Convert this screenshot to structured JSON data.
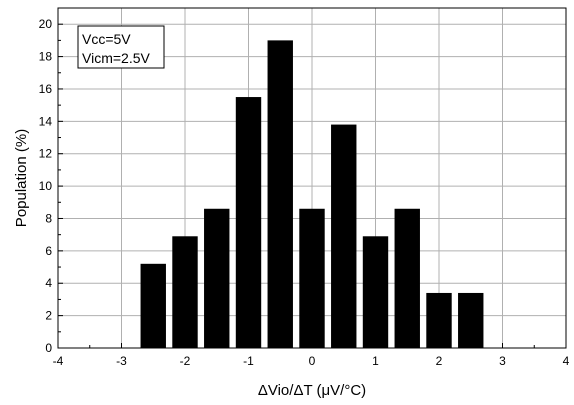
{
  "chart_data": {
    "type": "bar",
    "xlabel": "ΔVio/ΔT (μV/°C)",
    "ylabel": "Population (%)",
    "xlim": [
      -4,
      4
    ],
    "ylim": [
      0,
      21
    ],
    "xticks": [
      -4,
      -3,
      -2,
      -1,
      0,
      1,
      2,
      3,
      4
    ],
    "yticks": [
      0,
      2,
      4,
      6,
      8,
      10,
      12,
      14,
      16,
      18,
      20
    ],
    "grid": true,
    "bar_width": 0.4,
    "bar_color": "#000000",
    "x": [
      -2.5,
      -2.0,
      -1.5,
      -1.0,
      -0.5,
      0.0,
      0.5,
      1.0,
      1.5,
      2.0,
      2.5
    ],
    "values": [
      5.2,
      6.9,
      8.6,
      15.5,
      19.0,
      8.6,
      13.8,
      6.9,
      8.6,
      3.4,
      3.4
    ],
    "annotation": {
      "lines": [
        "Vcc=5V",
        "Vicm=2.5V"
      ],
      "placement": "top-left"
    }
  }
}
